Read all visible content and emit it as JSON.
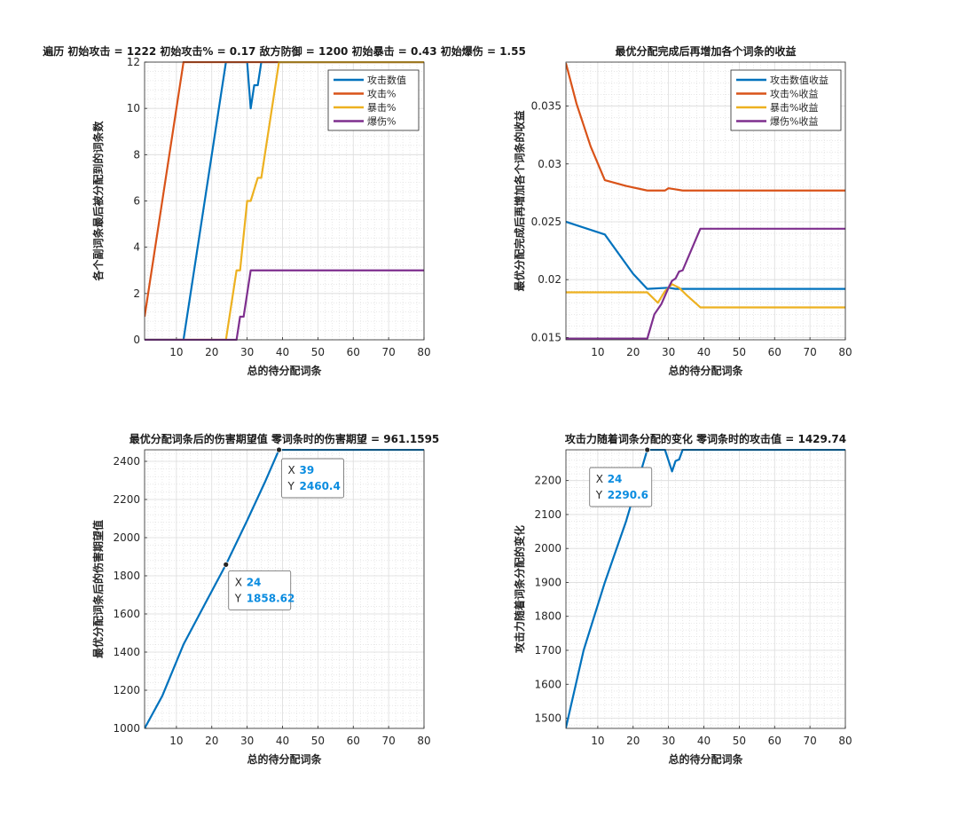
{
  "chart_data": [
    {
      "type": "line",
      "title": "遍历 初始攻击 = 1222 初始攻击% = 0.17 敌方防御 = 1200 初始暴击 = 0.43 初始爆伤 = 1.55",
      "xlabel": "总的待分配词条",
      "ylabel": "各个副词条最后被分配到的词条数",
      "xlim": [
        1,
        80
      ],
      "ylim": [
        0,
        12
      ],
      "xticks": [
        "10",
        "20",
        "30",
        "40",
        "50",
        "60",
        "70",
        "80"
      ],
      "yticks": [
        "0",
        "2",
        "4",
        "6",
        "8",
        "10",
        "12"
      ],
      "grid": true,
      "legend": "top-right",
      "series": [
        {
          "name": "攻击数值",
          "color": "#0072BD",
          "points": [
            [
              1,
              0
            ],
            [
              12,
              0
            ],
            [
              24,
              12
            ],
            [
              30,
              12
            ],
            [
              31,
              10
            ],
            [
              32,
              11
            ],
            [
              33,
              11
            ],
            [
              34,
              12
            ],
            [
              80,
              12
            ]
          ]
        },
        {
          "name": "攻击%",
          "color": "#D95319",
          "points": [
            [
              1,
              1
            ],
            [
              12,
              12
            ],
            [
              80,
              12
            ]
          ]
        },
        {
          "name": "暴击%",
          "color": "#EDB120",
          "points": [
            [
              1,
              0
            ],
            [
              24,
              0
            ],
            [
              27,
              3
            ],
            [
              28,
              3
            ],
            [
              30,
              6
            ],
            [
              31,
              6
            ],
            [
              33,
              7
            ],
            [
              34,
              7
            ],
            [
              39,
              12
            ],
            [
              80,
              12
            ]
          ]
        },
        {
          "name": "爆伤%",
          "color": "#7E2F8E",
          "points": [
            [
              1,
              0
            ],
            [
              27,
              0
            ],
            [
              28,
              1
            ],
            [
              29,
              1
            ],
            [
              31,
              3
            ],
            [
              80,
              3
            ]
          ]
        }
      ]
    },
    {
      "type": "line",
      "title": "最优分配完成后再增加各个词条的收益",
      "xlabel": "总的待分配词条",
      "ylabel": "最优分配完成后再增加各个词条的收益",
      "xlim": [
        1,
        80
      ],
      "ylim": [
        0.0148,
        0.0388
      ],
      "xticks": [
        "10",
        "20",
        "30",
        "40",
        "50",
        "60",
        "70",
        "80"
      ],
      "yticks": [
        "0.015",
        "0.02",
        "0.025",
        "0.03",
        "0.035"
      ],
      "grid": true,
      "legend": "top-right",
      "series": [
        {
          "name": "攻击数值收益",
          "color": "#0072BD",
          "points": [
            [
              1,
              0.025
            ],
            [
              12,
              0.0239
            ],
            [
              16,
              0.0222
            ],
            [
              20,
              0.0205
            ],
            [
              24,
              0.0192
            ],
            [
              30,
              0.0193
            ],
            [
              32,
              0.0192
            ],
            [
              80,
              0.0192
            ]
          ]
        },
        {
          "name": "攻击%收益",
          "color": "#D95319",
          "points": [
            [
              1,
              0.0387
            ],
            [
              4,
              0.0352
            ],
            [
              8,
              0.0315
            ],
            [
              12,
              0.0286
            ],
            [
              18,
              0.0281
            ],
            [
              24,
              0.0277
            ],
            [
              29,
              0.0277
            ],
            [
              30,
              0.0279
            ],
            [
              32,
              0.0278
            ],
            [
              34,
              0.0277
            ],
            [
              80,
              0.0277
            ]
          ]
        },
        {
          "name": "暴击%收益",
          "color": "#EDB120",
          "points": [
            [
              1,
              0.0189
            ],
            [
              24,
              0.0189
            ],
            [
              27,
              0.018
            ],
            [
              29,
              0.019
            ],
            [
              31,
              0.0196
            ],
            [
              33,
              0.0193
            ],
            [
              35,
              0.0187
            ],
            [
              39,
              0.0176
            ],
            [
              80,
              0.0176
            ]
          ]
        },
        {
          "name": "爆伤%收益",
          "color": "#7E2F8E",
          "points": [
            [
              1,
              0.0149
            ],
            [
              24,
              0.0149
            ],
            [
              26,
              0.017
            ],
            [
              28,
              0.0179
            ],
            [
              30,
              0.0193
            ],
            [
              31,
              0.0199
            ],
            [
              32,
              0.0201
            ],
            [
              33,
              0.0207
            ],
            [
              34,
              0.0208
            ],
            [
              39,
              0.0244
            ],
            [
              80,
              0.0244
            ]
          ]
        }
      ]
    },
    {
      "type": "line",
      "title": "最优分配词条后的伤害期望值 零词条时的伤害期望 = 961.1595",
      "xlabel": "总的待分配词条",
      "ylabel": "最优分配词条后的伤害期望值",
      "xlim": [
        1,
        80
      ],
      "ylim": [
        1000,
        2460.4
      ],
      "xticks": [
        "10",
        "20",
        "30",
        "40",
        "50",
        "60",
        "70",
        "80"
      ],
      "yticks": [
        "1000",
        "1200",
        "1400",
        "1600",
        "1800",
        "2000",
        "2200",
        "2400"
      ],
      "grid": true,
      "series": [
        {
          "name": "",
          "color": "#0072BD",
          "points": [
            [
              1,
              1000
            ],
            [
              6,
              1170
            ],
            [
              12,
              1440
            ],
            [
              18,
              1650
            ],
            [
              24,
              1858.62
            ],
            [
              30,
              2090
            ],
            [
              35,
              2290
            ],
            [
              39,
              2460.4
            ],
            [
              80,
              2460.4
            ]
          ]
        }
      ],
      "datatips": [
        {
          "x": 24,
          "y": 1858.62,
          "x_label": "X",
          "y_label": "Y",
          "x_text": "24",
          "y_text": "1858.62"
        },
        {
          "x": 39,
          "y": 2460.4,
          "x_label": "X",
          "y_label": "Y",
          "x_text": "39",
          "y_text": "2460.4"
        }
      ]
    },
    {
      "type": "line",
      "title": "攻击力随着词条分配的变化 零词条时的攻击值 = 1429.74",
      "xlabel": "总的待分配词条",
      "ylabel": "攻击力随着词条分配的变化",
      "xlim": [
        1,
        80
      ],
      "ylim": [
        1470,
        2290.6
      ],
      "xticks": [
        "10",
        "20",
        "30",
        "40",
        "50",
        "60",
        "70",
        "80"
      ],
      "yticks": [
        "1500",
        "1600",
        "1700",
        "1800",
        "1900",
        "2000",
        "2100",
        "2200"
      ],
      "grid": true,
      "series": [
        {
          "name": "",
          "color": "#0072BD",
          "points": [
            [
              1,
              1472
            ],
            [
              6,
              1700
            ],
            [
              12,
              1900
            ],
            [
              18,
              2080
            ],
            [
              24,
              2290.6
            ],
            [
              29,
              2290.6
            ],
            [
              31,
              2227
            ],
            [
              32,
              2258
            ],
            [
              33,
              2262
            ],
            [
              34,
              2290.6
            ],
            [
              80,
              2290.6
            ]
          ]
        }
      ],
      "datatips": [
        {
          "x": 24,
          "y": 2290.6,
          "x_label": "X",
          "y_label": "Y",
          "x_text": "24",
          "y_text": "2290.6"
        }
      ]
    }
  ]
}
